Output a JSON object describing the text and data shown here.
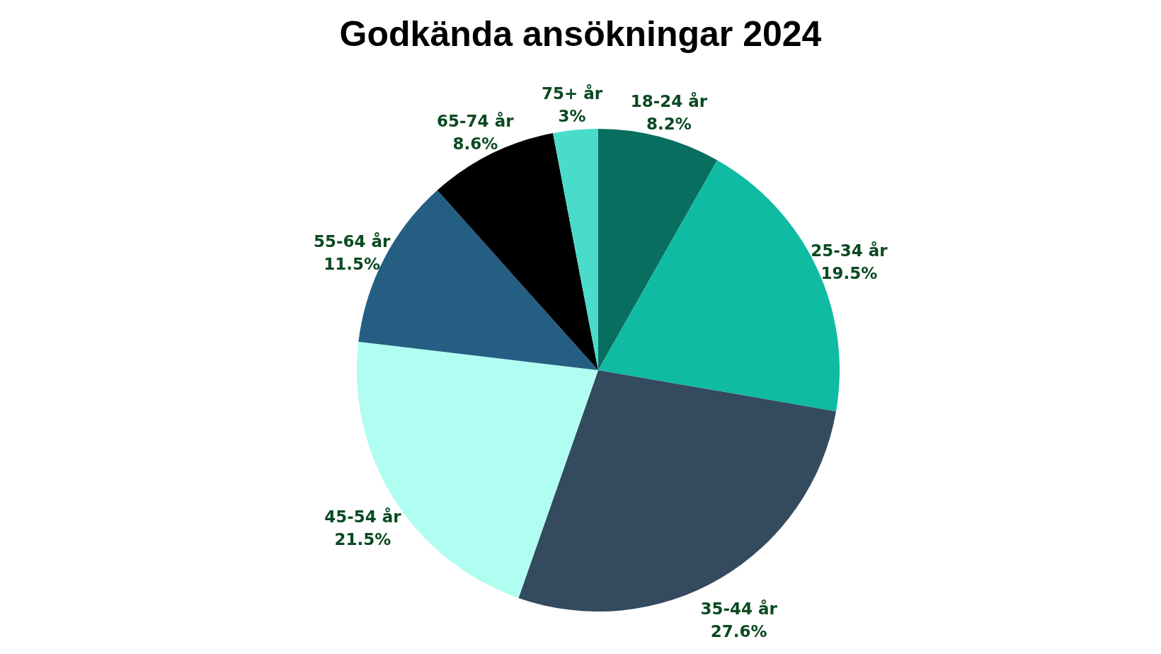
{
  "chart_data": {
    "type": "pie",
    "title": "Godkända ansökningar 2024",
    "categories": [
      "18-24 år",
      "25-34 år",
      "35-44 år",
      "45-54 år",
      "55-64 år",
      "65-74 år",
      "75+ år"
    ],
    "values": [
      8.2,
      19.5,
      27.6,
      21.5,
      11.5,
      8.6,
      3
    ],
    "value_labels": [
      "8.2%",
      "19.5%",
      "27.6%",
      "21.5%",
      "11.5%",
      "8.6%",
      "3%"
    ],
    "colors": [
      "#086e5f",
      "#10bba3",
      "#344a5e",
      "#b0fdf1",
      "#245e83",
      "#000000",
      "#4adccb"
    ]
  }
}
